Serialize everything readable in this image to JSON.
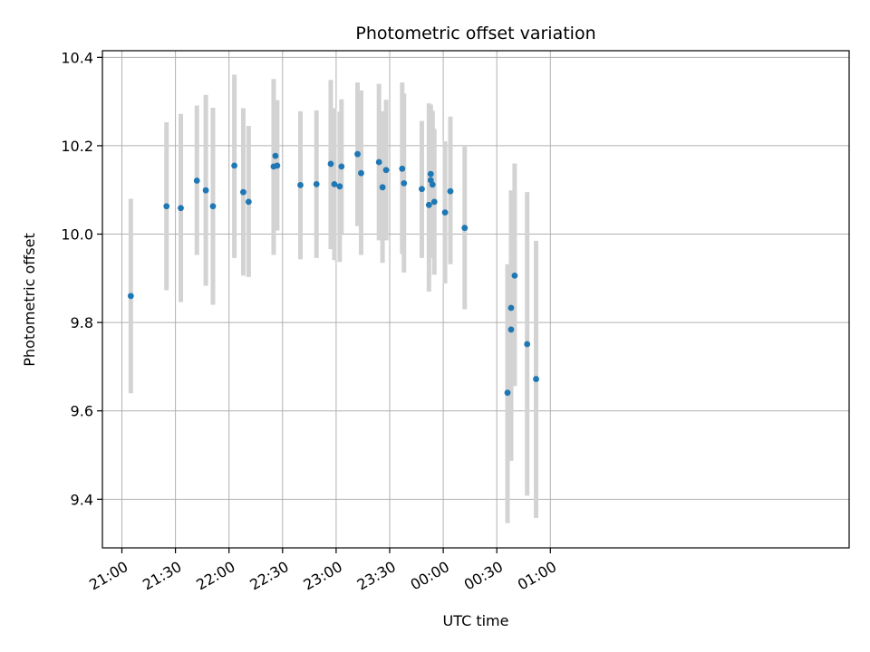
{
  "chart_data": {
    "type": "scatter",
    "title": "Photometric offset variation",
    "xlabel": "UTC time",
    "ylabel": "Photometric offset",
    "ylim": [
      9.29,
      10.415
    ],
    "xlim": [
      "21:00",
      "01:00"
    ],
    "x_tick_labels": [
      "21:00",
      "21:30",
      "22:00",
      "22:30",
      "23:00",
      "23:30",
      "00:00",
      "00:30",
      "01:00"
    ],
    "y_tick_labels": [
      "9.4",
      "9.6",
      "9.8",
      "10.0",
      "10.2",
      "10.4"
    ],
    "grid": true,
    "colors": {
      "point": "#1f77b4",
      "errorbar": "#d3d3d3",
      "grid": "#b0b0b0"
    },
    "points": [
      {
        "x": "21:05",
        "y": 9.86,
        "ylow": 9.64,
        "yhigh": 10.08
      },
      {
        "x": "21:25",
        "y": 10.063,
        "ylow": 9.873,
        "yhigh": 10.253
      },
      {
        "x": "21:33",
        "y": 10.059,
        "ylow": 9.846,
        "yhigh": 10.272
      },
      {
        "x": "21:42",
        "y": 10.121,
        "ylow": 9.953,
        "yhigh": 10.291
      },
      {
        "x": "21:47",
        "y": 10.099,
        "ylow": 9.883,
        "yhigh": 10.315
      },
      {
        "x": "21:51",
        "y": 10.063,
        "ylow": 9.84,
        "yhigh": 10.286
      },
      {
        "x": "22:03",
        "y": 10.155,
        "ylow": 9.946,
        "yhigh": 10.361
      },
      {
        "x": "22:08",
        "y": 10.095,
        "ylow": 9.906,
        "yhigh": 10.285
      },
      {
        "x": "22:11",
        "y": 10.073,
        "ylow": 9.903,
        "yhigh": 10.245
      },
      {
        "x": "22:25",
        "y": 10.153,
        "ylow": 9.953,
        "yhigh": 10.351
      },
      {
        "x": "22:26",
        "y": 10.177,
        "ylow": 10.05,
        "yhigh": 10.303
      },
      {
        "x": "22:27",
        "y": 10.155,
        "ylow": 10.008,
        "yhigh": 10.303
      },
      {
        "x": "22:40",
        "y": 10.111,
        "ylow": 9.943,
        "yhigh": 10.278
      },
      {
        "x": "22:49",
        "y": 10.113,
        "ylow": 9.946,
        "yhigh": 10.28
      },
      {
        "x": "22:57",
        "y": 10.159,
        "ylow": 9.966,
        "yhigh": 10.349
      },
      {
        "x": "22:59",
        "y": 10.113,
        "ylow": 9.941,
        "yhigh": 10.285
      },
      {
        "x": "23:02",
        "y": 10.108,
        "ylow": 9.937,
        "yhigh": 10.277
      },
      {
        "x": "23:03",
        "y": 10.153,
        "ylow": 10.001,
        "yhigh": 10.305
      },
      {
        "x": "23:12",
        "y": 10.181,
        "ylow": 10.018,
        "yhigh": 10.343
      },
      {
        "x": "23:14",
        "y": 10.138,
        "ylow": 9.953,
        "yhigh": 10.325
      },
      {
        "x": "23:24",
        "y": 10.163,
        "ylow": 9.986,
        "yhigh": 10.34
      },
      {
        "x": "23:26",
        "y": 10.106,
        "ylow": 9.935,
        "yhigh": 10.278
      },
      {
        "x": "23:28",
        "y": 10.145,
        "ylow": 9.986,
        "yhigh": 10.304
      },
      {
        "x": "23:37",
        "y": 10.148,
        "ylow": 9.955,
        "yhigh": 10.343
      },
      {
        "x": "23:38",
        "y": 10.115,
        "ylow": 9.913,
        "yhigh": 10.318
      },
      {
        "x": "23:48",
        "y": 10.102,
        "ylow": 9.946,
        "yhigh": 10.256
      },
      {
        "x": "23:52",
        "y": 10.066,
        "ylow": 9.87,
        "yhigh": 10.296
      },
      {
        "x": "23:53",
        "y": 10.122,
        "ylow": 9.946,
        "yhigh": 10.293
      },
      {
        "x": "23:53",
        "y": 10.136,
        "ylow": 9.986,
        "yhigh": 10.284
      },
      {
        "x": "23:54",
        "y": 10.112,
        "ylow": 9.963,
        "yhigh": 10.279
      },
      {
        "x": "23:55",
        "y": 10.073,
        "ylow": 9.908,
        "yhigh": 10.238
      },
      {
        "x": "00:01",
        "y": 10.049,
        "ylow": 9.888,
        "yhigh": 10.21
      },
      {
        "x": "00:04",
        "y": 10.097,
        "ylow": 9.932,
        "yhigh": 10.266
      },
      {
        "x": "00:12",
        "y": 10.014,
        "ylow": 9.83,
        "yhigh": 10.198
      },
      {
        "x": "00:36",
        "y": 9.641,
        "ylow": 9.346,
        "yhigh": 9.932
      },
      {
        "x": "00:38",
        "y": 9.784,
        "ylow": 9.568,
        "yhigh": 10.002
      },
      {
        "x": "00:38",
        "y": 9.833,
        "ylow": 9.487,
        "yhigh": 10.099
      },
      {
        "x": "00:40",
        "y": 9.906,
        "ylow": 9.656,
        "yhigh": 10.16
      },
      {
        "x": "00:47",
        "y": 9.751,
        "ylow": 9.408,
        "yhigh": 10.095
      },
      {
        "x": "00:52",
        "y": 9.672,
        "ylow": 9.358,
        "yhigh": 9.985
      }
    ]
  }
}
